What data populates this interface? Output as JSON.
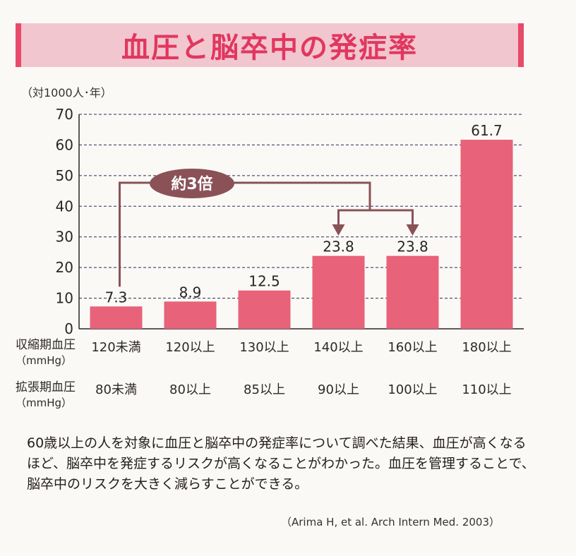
{
  "title": "血圧と脳卒中の発症率",
  "unit": "（対1000人･年）",
  "chart_data": {
    "type": "bar",
    "categories": [
      "120未満",
      "120以上",
      "130以上",
      "140以上",
      "160以上",
      "180以上"
    ],
    "categories_diastolic": [
      "80未満",
      "80以上",
      "85以上",
      "90以上",
      "100以上",
      "110以上"
    ],
    "values": [
      7.3,
      8.9,
      12.5,
      23.8,
      23.8,
      61.7
    ],
    "value_labels": [
      "7.3",
      "8.9",
      "12.5",
      "23.8",
      "23.8",
      "61.7"
    ],
    "ylim": [
      0,
      70
    ],
    "yticks": [
      0,
      10,
      20,
      30,
      40,
      50,
      60,
      70
    ],
    "grid": true,
    "annotation": "約3倍",
    "bar_color": "#e8627a"
  },
  "rows": {
    "systolic_label": "収縮期血圧",
    "systolic_unit": "（mmHg）",
    "diastolic_label": "拡張期血圧",
    "diastolic_unit": "（mmHg）"
  },
  "caption": "60歳以上の人を対象に血圧と脳卒中の発症率について調べた結果、血圧が高くなるほど、脳卒中を発症するリスクが高くなることがわかった。血圧を管理することで、脳卒中のリスクを大きく減らすことができる。",
  "source": "（Arima H, et al. Arch Intern Med. 2003）"
}
